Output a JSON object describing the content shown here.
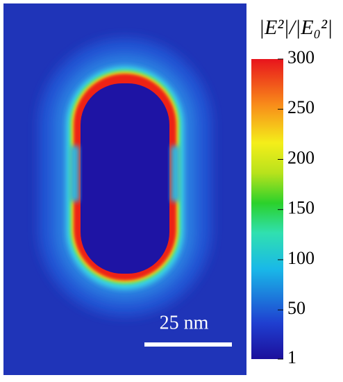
{
  "colorbar": {
    "title": "|E²|/|E₀²|",
    "lim": [
      1,
      300
    ],
    "ticks": [
      1,
      50,
      100,
      150,
      200,
      250,
      300
    ]
  },
  "scale_bar": {
    "label": "25 nm"
  }
}
